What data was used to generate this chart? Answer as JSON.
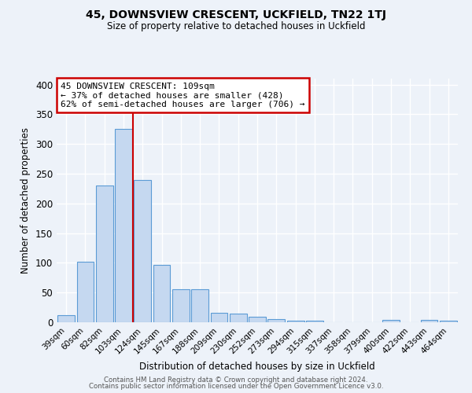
{
  "title": "45, DOWNSVIEW CRESCENT, UCKFIELD, TN22 1TJ",
  "subtitle": "Size of property relative to detached houses in Uckfield",
  "xlabel": "Distribution of detached houses by size in Uckfield",
  "ylabel": "Number of detached properties",
  "categories": [
    "39sqm",
    "60sqm",
    "82sqm",
    "103sqm",
    "124sqm",
    "145sqm",
    "167sqm",
    "188sqm",
    "209sqm",
    "230sqm",
    "252sqm",
    "273sqm",
    "294sqm",
    "315sqm",
    "337sqm",
    "358sqm",
    "379sqm",
    "400sqm",
    "422sqm",
    "443sqm",
    "464sqm"
  ],
  "values": [
    12,
    102,
    230,
    325,
    240,
    97,
    55,
    55,
    16,
    14,
    9,
    5,
    3,
    3,
    0,
    0,
    0,
    4,
    0,
    4,
    3
  ],
  "bar_color": "#c5d8f0",
  "bar_edge_color": "#5b9bd5",
  "vline_index": 3,
  "vline_color": "#cc0000",
  "annotation_line1": "45 DOWNSVIEW CRESCENT: 109sqm",
  "annotation_line2": "← 37% of detached houses are smaller (428)",
  "annotation_line3": "62% of semi-detached houses are larger (706) →",
  "annotation_box_color": "#ffffff",
  "annotation_box_edge": "#cc0000",
  "ylim": [
    0,
    410
  ],
  "yticks": [
    0,
    50,
    100,
    150,
    200,
    250,
    300,
    350,
    400
  ],
  "background_color": "#edf2f9",
  "grid_color": "#ffffff",
  "footer_line1": "Contains HM Land Registry data © Crown copyright and database right 2024.",
  "footer_line2": "Contains public sector information licensed under the Open Government Licence v3.0."
}
